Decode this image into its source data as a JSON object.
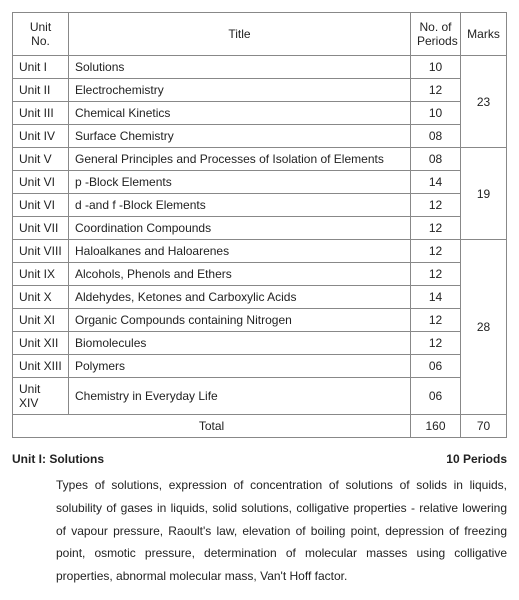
{
  "table": {
    "headers": {
      "unit": "Unit No.",
      "title": "Title",
      "periods": "No. of Periods",
      "marks": "Marks"
    },
    "groups": [
      {
        "marks": "23",
        "rows": [
          {
            "unit": "Unit I",
            "title": "Solutions",
            "periods": "10"
          },
          {
            "unit": "Unit II",
            "title": "Electrochemistry",
            "periods": "12"
          },
          {
            "unit": "Unit III",
            "title": "Chemical Kinetics",
            "periods": "10"
          },
          {
            "unit": "Unit IV",
            "title": "Surface Chemistry",
            "periods": "08"
          }
        ]
      },
      {
        "marks": "19",
        "rows": [
          {
            "unit": "Unit V",
            "title": "General Principles and Processes of Isolation of Elements",
            "periods": "08"
          },
          {
            "unit": "Unit VI",
            "title": "p -Block Elements",
            "periods": "14"
          },
          {
            "unit": "Unit VI",
            "title": "d -and f -Block Elements",
            "periods": "12"
          },
          {
            "unit": "Unit VII",
            "title": "Coordination Compounds",
            "periods": "12"
          }
        ]
      },
      {
        "marks": "28",
        "rows": [
          {
            "unit": "Unit VIII",
            "title": "Haloalkanes and Haloarenes",
            "periods": "12"
          },
          {
            "unit": "Unit IX",
            "title": "Alcohols, Phenols and Ethers",
            "periods": "12"
          },
          {
            "unit": "Unit X",
            "title": "Aldehydes, Ketones and Carboxylic Acids",
            "periods": "14"
          },
          {
            "unit": "Unit XI",
            "title": "Organic Compounds containing Nitrogen",
            "periods": "12"
          },
          {
            "unit": "Unit XII",
            "title": "Biomolecules",
            "periods": "12"
          },
          {
            "unit": "Unit XIII",
            "title": "Polymers",
            "periods": "06"
          },
          {
            "unit": "Unit XIV",
            "title": "Chemistry in Everyday Life",
            "periods": "06"
          }
        ]
      }
    ],
    "total": {
      "label": "Total",
      "periods": "160",
      "marks": "70"
    }
  },
  "section": {
    "heading": "Unit I: Solutions",
    "periods_label": "10 Periods",
    "body": "Types of solutions, expression of concentration of solutions of solids in liquids, solubility of gases in liquids, solid solutions, colligative properties - relative lowering of vapour pressure, Raoult's law, elevation of boiling point, depression of freezing point, osmotic pressure, determination of molecular masses using colligative properties, abnormal molecular mass, Van't Hoff factor."
  }
}
